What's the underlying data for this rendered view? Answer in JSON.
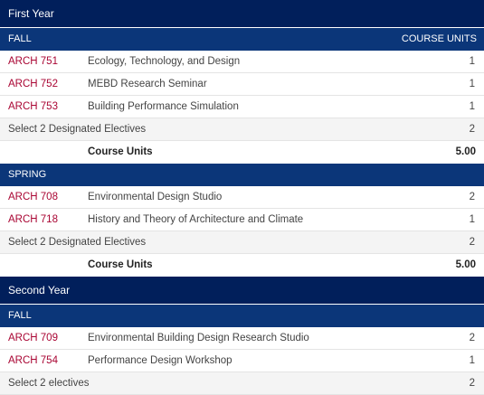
{
  "years": [
    {
      "title": "First Year",
      "terms": [
        {
          "name": "FALL",
          "units_header": "COURSE UNITS",
          "rows": [
            {
              "code": "ARCH 751",
              "title": "Ecology, Technology, and Design",
              "units": "1"
            },
            {
              "code": "ARCH 752",
              "title": "MEBD Research Seminar",
              "units": "1"
            },
            {
              "code": "ARCH 753",
              "title": "Building Performance Simulation",
              "units": "1"
            },
            {
              "text": "Select 2 Designated Electives",
              "units": "2"
            }
          ],
          "total_label": "Course Units",
          "total_value": "5.00"
        },
        {
          "name": "SPRING",
          "units_header": "",
          "rows": [
            {
              "code": "ARCH 708",
              "title": "Environmental Design Studio",
              "units": "2"
            },
            {
              "code": "ARCH 718",
              "title": "History and Theory of Architecture and Climate",
              "units": "1"
            },
            {
              "text": "Select 2 Designated Electives",
              "units": "2"
            }
          ],
          "total_label": "Course Units",
          "total_value": "5.00"
        }
      ]
    },
    {
      "title": "Second Year",
      "terms": [
        {
          "name": "FALL",
          "units_header": "",
          "rows": [
            {
              "code": "ARCH 709",
              "title": "Environmental Building Design Research Studio",
              "units": "2"
            },
            {
              "code": "ARCH 754",
              "title": "Performance Design Workshop",
              "units": "1"
            },
            {
              "text": "Select 2 electives",
              "units": "2"
            }
          ]
        }
      ]
    }
  ]
}
